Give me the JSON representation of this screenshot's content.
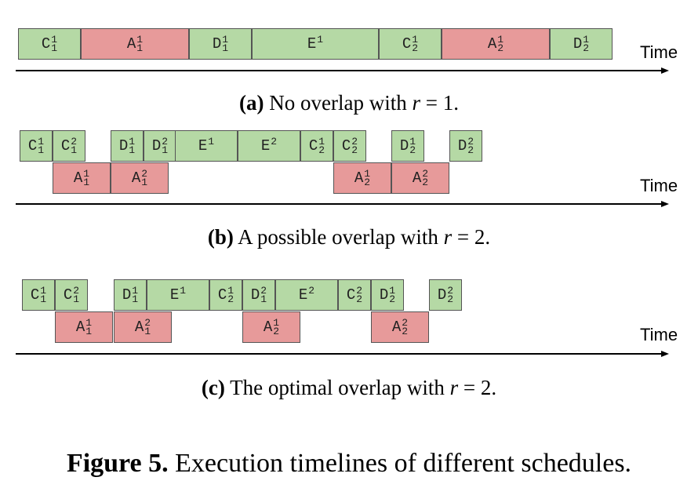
{
  "colors": {
    "compute": "#b5d9a5",
    "communication": "#e79a9a"
  },
  "axis_label": "Time",
  "panels": [
    {
      "caption": {
        "tag": "(a)",
        "text": "No overlap with",
        "var": "r",
        "rest": "= 1."
      },
      "blocks": [
        {
          "base": "C",
          "sup": "1",
          "sub": "1",
          "color": "green"
        },
        {
          "base": "A",
          "sup": "1",
          "sub": "1",
          "color": "red"
        },
        {
          "base": "D",
          "sup": "1",
          "sub": "1",
          "color": "green"
        },
        {
          "base": "E",
          "sup": "1",
          "sub": "",
          "color": "green"
        },
        {
          "base": "C",
          "sup": "1",
          "sub": "2",
          "color": "green"
        },
        {
          "base": "A",
          "sup": "1",
          "sub": "2",
          "color": "red"
        },
        {
          "base": "D",
          "sup": "1",
          "sub": "2",
          "color": "green"
        }
      ]
    },
    {
      "caption": {
        "tag": "(b)",
        "text": "A possible overlap with",
        "var": "r",
        "rest": "= 2."
      },
      "blocks": [
        {
          "base": "C",
          "sup": "1",
          "sub": "1",
          "color": "green"
        },
        {
          "base": "C",
          "sup": "2",
          "sub": "1",
          "color": "green"
        },
        {
          "base": "D",
          "sup": "1",
          "sub": "1",
          "color": "green"
        },
        {
          "base": "D",
          "sup": "2",
          "sub": "1",
          "color": "green"
        },
        {
          "base": "E",
          "sup": "1",
          "sub": "",
          "color": "green"
        },
        {
          "base": "E",
          "sup": "2",
          "sub": "",
          "color": "green"
        },
        {
          "base": "C",
          "sup": "1",
          "sub": "2",
          "color": "green"
        },
        {
          "base": "C",
          "sup": "2",
          "sub": "2",
          "color": "green"
        },
        {
          "base": "D",
          "sup": "1",
          "sub": "2",
          "color": "green"
        },
        {
          "base": "D",
          "sup": "2",
          "sub": "2",
          "color": "green"
        },
        {
          "base": "A",
          "sup": "1",
          "sub": "1",
          "color": "red"
        },
        {
          "base": "A",
          "sup": "2",
          "sub": "1",
          "color": "red"
        },
        {
          "base": "A",
          "sup": "1",
          "sub": "2",
          "color": "red"
        },
        {
          "base": "A",
          "sup": "2",
          "sub": "2",
          "color": "red"
        }
      ]
    },
    {
      "caption": {
        "tag": "(c)",
        "text": "The optimal overlap with",
        "var": "r",
        "rest": "= 2."
      },
      "blocks": [
        {
          "base": "C",
          "sup": "1",
          "sub": "1",
          "color": "green"
        },
        {
          "base": "C",
          "sup": "2",
          "sub": "1",
          "color": "green"
        },
        {
          "base": "D",
          "sup": "1",
          "sub": "1",
          "color": "green"
        },
        {
          "base": "E",
          "sup": "1",
          "sub": "",
          "color": "green"
        },
        {
          "base": "C",
          "sup": "1",
          "sub": "2",
          "color": "green"
        },
        {
          "base": "D",
          "sup": "2",
          "sub": "1",
          "color": "green"
        },
        {
          "base": "E",
          "sup": "2",
          "sub": "",
          "color": "green"
        },
        {
          "base": "C",
          "sup": "2",
          "sub": "2",
          "color": "green"
        },
        {
          "base": "D",
          "sup": "1",
          "sub": "2",
          "color": "green"
        },
        {
          "base": "D",
          "sup": "2",
          "sub": "2",
          "color": "green"
        },
        {
          "base": "A",
          "sup": "1",
          "sub": "1",
          "color": "red"
        },
        {
          "base": "A",
          "sup": "2",
          "sub": "1",
          "color": "red"
        },
        {
          "base": "A",
          "sup": "1",
          "sub": "2",
          "color": "red"
        },
        {
          "base": "A",
          "sup": "2",
          "sub": "2",
          "color": "red"
        }
      ]
    }
  ],
  "figure_caption": {
    "label": "Figure 5.",
    "text": "Execution timelines of different schedules."
  }
}
